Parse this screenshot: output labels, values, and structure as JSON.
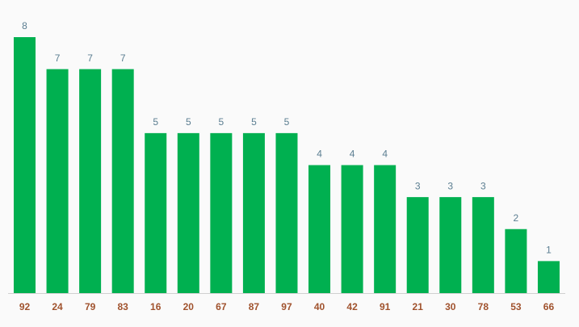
{
  "chart_data": {
    "type": "bar",
    "categories": [
      "92",
      "24",
      "79",
      "83",
      "16",
      "20",
      "67",
      "87",
      "97",
      "40",
      "42",
      "91",
      "21",
      "30",
      "78",
      "53",
      "66"
    ],
    "values": [
      8,
      7,
      7,
      7,
      5,
      5,
      5,
      5,
      5,
      4,
      4,
      4,
      3,
      3,
      3,
      2,
      1
    ],
    "color": "#00b050"
  }
}
